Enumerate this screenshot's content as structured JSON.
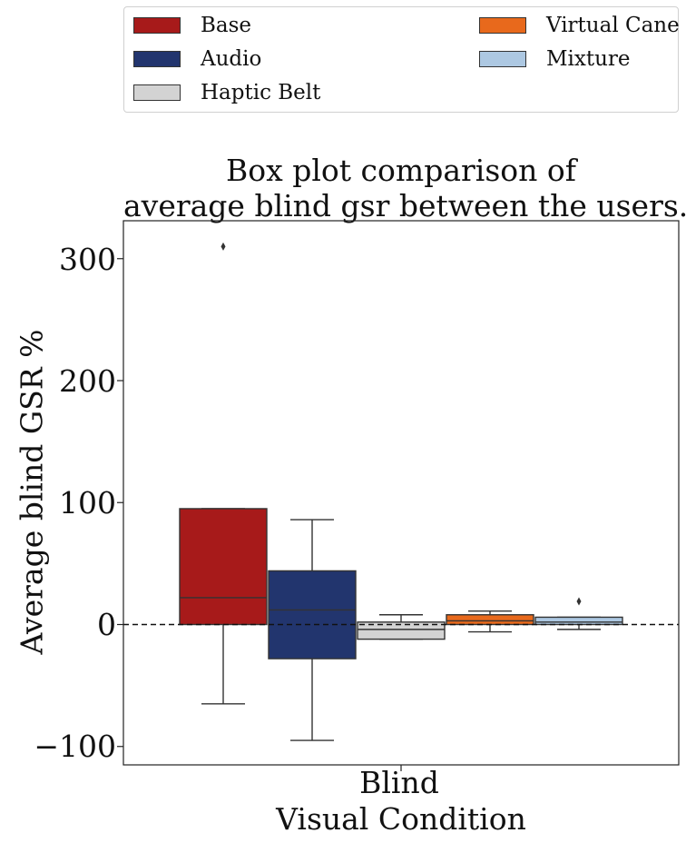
{
  "chart_data": {
    "type": "box",
    "title_lines": [
      "Box plot comparison of",
      "average blind gsr between the users."
    ],
    "xlabel": "Visual Condition",
    "ylabel": "Average blind GSR %",
    "categories": [
      "Blind"
    ],
    "ylim": [
      -115,
      330
    ],
    "yticks": [
      -100,
      0,
      100,
      200,
      300
    ],
    "ytick_labels": [
      "−100",
      "0",
      "100",
      "200",
      "300"
    ],
    "reference_line": 0,
    "legend_placement": "above",
    "series": [
      {
        "name": "Base",
        "color": "#a71a1a",
        "whisker_low": -65,
        "q1": 0,
        "median": 22,
        "q3": 95,
        "whisker_high": 95,
        "outliers": [
          310
        ]
      },
      {
        "name": "Audio",
        "color": "#22356e",
        "whisker_low": -95,
        "q1": -28,
        "median": 12,
        "q3": 44,
        "whisker_high": 86,
        "outliers": []
      },
      {
        "name": "Haptic Belt",
        "color": "#d3d3d3",
        "whisker_low": -12,
        "q1": -12,
        "median": -4,
        "q3": 2,
        "whisker_high": 8,
        "outliers": []
      },
      {
        "name": "Virtual Cane",
        "color": "#e8691c",
        "whisker_low": -6,
        "q1": 0,
        "median": 3,
        "q3": 8,
        "whisker_high": 11,
        "outliers": []
      },
      {
        "name": "Mixture",
        "color": "#adc8e2",
        "whisker_low": -4,
        "q1": 0,
        "median": 2,
        "q3": 6,
        "whisker_high": 6,
        "outliers": [
          19
        ]
      }
    ]
  }
}
